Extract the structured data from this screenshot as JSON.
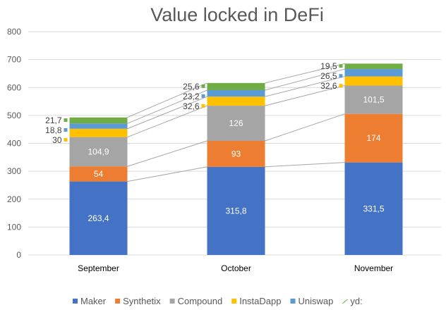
{
  "chart_data": {
    "type": "stacked-bar",
    "title": "Value locked in DeFi",
    "categories": [
      "September",
      "October",
      "November"
    ],
    "series": [
      {
        "name": "Maker",
        "color": "#4472c4",
        "values": [
          263.4,
          315.8,
          331.5
        ],
        "labels": [
          "263,4",
          "315,8",
          "331,5"
        ]
      },
      {
        "name": "Synthetix",
        "color": "#ed7d31",
        "values": [
          54,
          93,
          174
        ],
        "labels": [
          "54",
          "93",
          "174"
        ]
      },
      {
        "name": "Compound",
        "color": "#a5a5a5",
        "values": [
          104.9,
          126,
          101.5
        ],
        "labels": [
          "104,9",
          "126",
          "101,5"
        ]
      },
      {
        "name": "InstaDapp",
        "color": "#ffc000",
        "values": [
          30,
          32.6,
          32.6
        ],
        "labels": [
          "30",
          "32,6",
          "32,6"
        ]
      },
      {
        "name": "Uniswap",
        "color": "#5b9bd5",
        "values": [
          18.8,
          23.2,
          26.5
        ],
        "labels": [
          "18,8",
          "23,2",
          "26,5"
        ]
      },
      {
        "name": "yd:",
        "color": "#70ad47",
        "values": [
          21.7,
          25.6,
          19.5
        ],
        "labels": [
          "21,7",
          "25,6",
          "19,5"
        ]
      }
    ],
    "ylim": [
      0,
      800
    ],
    "yticks": [
      0,
      100,
      200,
      300,
      400,
      500,
      600,
      700,
      800
    ],
    "grid": true,
    "series_lines": true,
    "legend": "bottom"
  }
}
